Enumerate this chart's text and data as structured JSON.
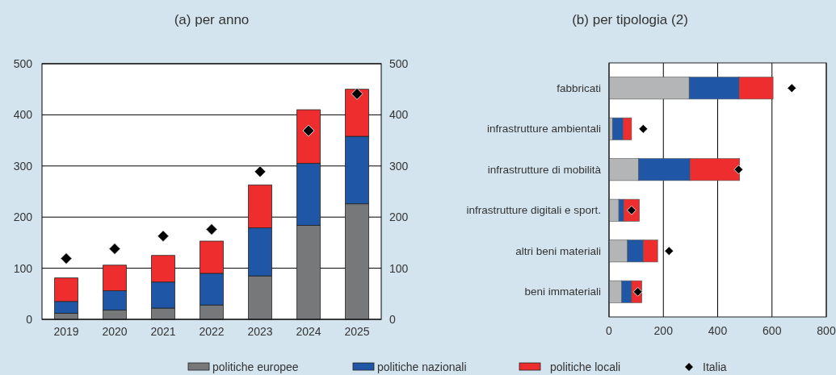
{
  "chart_data": [
    {
      "type": "bar",
      "title": "(a) per anno",
      "categories": [
        "2019",
        "2020",
        "2021",
        "2022",
        "2023",
        "2024",
        "2025"
      ],
      "stacked": true,
      "ylim": [
        0,
        500
      ],
      "yticks": [
        0,
        100,
        200,
        300,
        400,
        500
      ],
      "y2lim": [
        0,
        500
      ],
      "y2ticks": [
        0,
        100,
        200,
        300,
        400,
        500
      ],
      "grid": "y",
      "legend": "bottom",
      "series": [
        {
          "name": "politiche europee",
          "color": "#76787a",
          "values": [
            12,
            18,
            22,
            28,
            85,
            184,
            226
          ]
        },
        {
          "name": "politiche nazionali",
          "color": "#1f56a5",
          "values": [
            23,
            38,
            51,
            62,
            94,
            121,
            132
          ]
        },
        {
          "name": "politiche locali",
          "color": "#ee2e2e",
          "values": [
            46,
            50,
            52,
            63,
            84,
            105,
            92
          ]
        },
        {
          "name": "Italia",
          "type": "scatter",
          "marker": "diamond",
          "color": "#000000",
          "values": [
            119,
            138,
            163,
            176,
            289,
            369,
            441
          ]
        }
      ]
    },
    {
      "type": "bar",
      "title": "(b) per tipologia (2)",
      "orientation": "horizontal",
      "stacked": true,
      "categories": [
        "fabbricati",
        "infrastrutture ambientali",
        "infrastrutture di mobilità",
        "infrastrutture digitali e sport.",
        "altri beni materiali",
        "beni immateriali"
      ],
      "xlim": [
        0,
        800
      ],
      "xticks": [
        0,
        200,
        400,
        600,
        800
      ],
      "grid": "x",
      "legend": false,
      "series": [
        {
          "color": "#b3b5b6",
          "values": [
            295,
            13,
            109,
            36,
            68,
            47
          ]
        },
        {
          "color": "#1f56a5",
          "values": [
            184,
            39,
            189,
            18,
            58,
            36
          ]
        },
        {
          "color": "#ee2e2e",
          "values": [
            125,
            31,
            183,
            58,
            53,
            38
          ]
        },
        {
          "type": "scatter",
          "marker": "diamond",
          "color": "#000000",
          "values": [
            673,
            126,
            477,
            83,
            221,
            106
          ]
        }
      ]
    }
  ]
}
